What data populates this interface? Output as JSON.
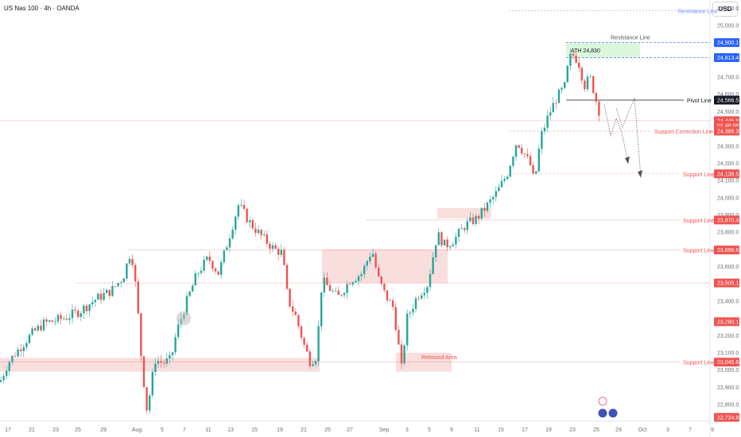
{
  "header": {
    "title": "US Nas 100 · 4h · OANDA"
  },
  "currency_button": "USD",
  "colors": {
    "up": "#26a69a",
    "down": "#ef5350",
    "blue": "#2962ff",
    "black": "#131722",
    "zone": "#f7d3d3",
    "ath_zone": "#d8f5d8"
  },
  "chart_data": {
    "type": "candlestick",
    "title": "US Nas 100 · 4h · OANDA",
    "ylim": [
      22680,
      25140
    ],
    "yticks": [
      22800,
      22900,
      23000,
      23100,
      23200,
      23400,
      23500,
      23600,
      23800,
      23900,
      24000,
      24100,
      24200,
      24300,
      24400,
      24500,
      24600,
      24700,
      25000,
      25100
    ],
    "xticks": [
      "17",
      "21",
      "23",
      "25",
      "29",
      "Aug",
      "5",
      "7",
      "11",
      "13",
      "15",
      "19",
      "21",
      "25",
      "27",
      "Sep",
      "3",
      "5",
      "9",
      "11",
      "15",
      "17",
      "19",
      "23",
      "25",
      "29",
      "Oct",
      "3",
      "7",
      "9"
    ],
    "close_path": [
      [
        0,
        22930
      ],
      [
        10,
        23040
      ],
      [
        25,
        23130
      ],
      [
        40,
        23210
      ],
      [
        55,
        23270
      ],
      [
        80,
        23300
      ],
      [
        100,
        23340
      ],
      [
        120,
        23410
      ],
      [
        140,
        23460
      ],
      [
        155,
        23540
      ],
      [
        165,
        23700
      ],
      [
        172,
        23430
      ],
      [
        178,
        23050
      ],
      [
        185,
        22760
      ],
      [
        195,
        23060
      ],
      [
        205,
        23040
      ],
      [
        215,
        23060
      ],
      [
        222,
        23220
      ],
      [
        235,
        23400
      ],
      [
        248,
        23560
      ],
      [
        262,
        23650
      ],
      [
        275,
        23560
      ],
      [
        288,
        23770
      ],
      [
        300,
        23960
      ],
      [
        315,
        23850
      ],
      [
        330,
        23770
      ],
      [
        345,
        23700
      ],
      [
        355,
        23680
      ],
      [
        362,
        23410
      ],
      [
        372,
        23310
      ],
      [
        382,
        23150
      ],
      [
        390,
        23050
      ],
      [
        398,
        23080
      ],
      [
        405,
        23520
      ],
      [
        415,
        23470
      ],
      [
        425,
        23420
      ],
      [
        440,
        23520
      ],
      [
        455,
        23560
      ],
      [
        468,
        23700
      ],
      [
        475,
        23540
      ],
      [
        485,
        23430
      ],
      [
        495,
        23360
      ],
      [
        505,
        23010
      ],
      [
        512,
        23300
      ],
      [
        525,
        23430
      ],
      [
        538,
        23500
      ],
      [
        550,
        23790
      ],
      [
        560,
        23720
      ],
      [
        572,
        23760
      ],
      [
        585,
        23840
      ],
      [
        600,
        23880
      ],
      [
        612,
        23950
      ],
      [
        625,
        24030
      ],
      [
        638,
        24140
      ],
      [
        650,
        24330
      ],
      [
        660,
        24250
      ],
      [
        668,
        24180
      ],
      [
        672,
        24080
      ],
      [
        680,
        24350
      ],
      [
        690,
        24480
      ],
      [
        700,
        24580
      ],
      [
        710,
        24640
      ],
      [
        716,
        24810
      ],
      [
        722,
        24830
      ],
      [
        728,
        24780
      ],
      [
        735,
        24650
      ],
      [
        742,
        24700
      ],
      [
        748,
        24600
      ],
      [
        753,
        24500
      ],
      [
        757,
        24560
      ]
    ],
    "levels": [
      {
        "label": "Resistance Line",
        "value": 25085
      },
      {
        "label": "ATH 24,830",
        "value": 24830
      },
      {
        "label": "Pivot Line",
        "value": 24566.5
      },
      {
        "label": "Support Correction Line",
        "value": 24386.3
      },
      {
        "label": "Support Line",
        "value": 24138.5
      },
      {
        "label": "Support Line",
        "value": 23870.4
      },
      {
        "label": "Support Line",
        "value": 23696.6
      },
      {
        "label": "Support Line",
        "value": 23045.6
      }
    ],
    "price_badges": [
      {
        "text": "24,900.1",
        "value": 24900.1,
        "color": "#2962ff"
      },
      {
        "text": "24,813.4",
        "value": 24813.4,
        "color": "#2962ff"
      },
      {
        "text": "24,566.5",
        "value": 24566.5,
        "color": "#131722"
      },
      {
        "text": "24,446.9",
        "value": 24446.9,
        "color": "#ef5350"
      },
      {
        "text": "01:46:08",
        "value": 24420,
        "color": "#ef5350"
      },
      {
        "text": "24,386.3",
        "value": 24386.3,
        "color": "#ef5350"
      },
      {
        "text": "24,138.5",
        "value": 24138.5,
        "color": "#ef5350"
      },
      {
        "text": "23,870.4",
        "value": 23870.4,
        "color": "#ef5350"
      },
      {
        "text": "23,696.6",
        "value": 23696.6,
        "color": "#ef5350"
      },
      {
        "text": "23,505.1",
        "value": 23505.1,
        "color": "#ef5350"
      },
      {
        "text": "23,280.1",
        "value": 23280.1,
        "color": "#ef5350"
      },
      {
        "text": "23,045.6",
        "value": 23045.6,
        "color": "#ef5350"
      },
      {
        "text": "22,724.8",
        "value": 22724.8,
        "color": "#ef5350"
      }
    ],
    "zones": [
      {
        "label": "",
        "from": 22990,
        "to": 23070
      },
      {
        "label": "Rebound Area",
        "from": 22990,
        "to": 23100
      },
      {
        "label": "",
        "from": 23505,
        "to": 23700
      },
      {
        "label": "",
        "from": 23880,
        "to": 23940
      }
    ],
    "annotations": [
      "ATH  24,830",
      "Resistance Line",
      "Pivot Line",
      "Support Correction Line",
      "Support Line",
      "Rebound Area"
    ]
  }
}
